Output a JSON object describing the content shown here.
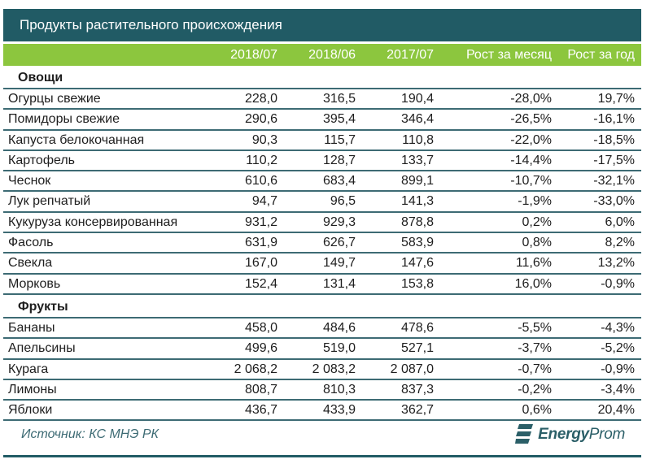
{
  "title": "Продукты растительного происхождения",
  "columns": [
    "",
    "2018/07",
    "2018/06",
    "2017/07",
    "Рост за месяц",
    "Рост за год"
  ],
  "sections": [
    {
      "label": "Овощи",
      "rows": [
        {
          "name": "Огурцы свежие",
          "v1": "228,0",
          "v2": "316,5",
          "v3": "190,4",
          "g_month": "-28,0%",
          "g_year": "19,7%"
        },
        {
          "name": "Помидоры свежие",
          "v1": "290,6",
          "v2": "395,4",
          "v3": "346,4",
          "g_month": "-26,5%",
          "g_year": "-16,1%"
        },
        {
          "name": "Капуста белокочанная",
          "v1": "90,3",
          "v2": "115,7",
          "v3": "110,8",
          "g_month": "-22,0%",
          "g_year": "-18,5%"
        },
        {
          "name": "Картофель",
          "v1": "110,2",
          "v2": "128,7",
          "v3": "133,7",
          "g_month": "-14,4%",
          "g_year": "-17,5%"
        },
        {
          "name": "Чеснок",
          "v1": "610,6",
          "v2": "683,4",
          "v3": "899,1",
          "g_month": "-10,7%",
          "g_year": "-32,1%"
        },
        {
          "name": "Лук репчатый",
          "v1": "94,7",
          "v2": "96,5",
          "v3": "141,3",
          "g_month": "-1,9%",
          "g_year": "-33,0%"
        },
        {
          "name": "Кукуруза консервированная",
          "v1": "931,2",
          "v2": "929,3",
          "v3": "878,8",
          "g_month": "0,2%",
          "g_year": "6,0%"
        },
        {
          "name": "Фасоль",
          "v1": "631,9",
          "v2": "626,7",
          "v3": "583,9",
          "g_month": "0,8%",
          "g_year": "8,2%"
        },
        {
          "name": "Свекла",
          "v1": "167,0",
          "v2": "149,7",
          "v3": "147,6",
          "g_month": "11,6%",
          "g_year": "13,2%"
        },
        {
          "name": "Морковь",
          "v1": "152,4",
          "v2": "131,4",
          "v3": "153,8",
          "g_month": "16,0%",
          "g_year": "-0,9%"
        }
      ]
    },
    {
      "label": "Фрукты",
      "rows": [
        {
          "name": "Бананы",
          "v1": "458,0",
          "v2": "484,6",
          "v3": "478,6",
          "g_month": "-5,5%",
          "g_year": "-4,3%"
        },
        {
          "name": "Апельсины",
          "v1": "499,6",
          "v2": "519,0",
          "v3": "527,1",
          "g_month": "-3,7%",
          "g_year": "-5,2%"
        },
        {
          "name": "Курага",
          "v1": "2 068,2",
          "v2": "2 083,2",
          "v3": "2 087,0",
          "g_month": "-0,7%",
          "g_year": "-0,9%"
        },
        {
          "name": "Лимоны",
          "v1": "808,7",
          "v2": "810,3",
          "v3": "837,3",
          "g_month": "-0,2%",
          "g_year": "-3,4%"
        },
        {
          "name": "Яблоки",
          "v1": "436,7",
          "v2": "433,9",
          "v3": "362,7",
          "g_month": "0,6%",
          "g_year": "20,4%"
        }
      ]
    }
  ],
  "footer": {
    "source": "Источник: КС МНЭ РК",
    "logo_bold": "Energy",
    "logo_thin": "Prom",
    "logo_icon": "energyprom-logo-icon"
  },
  "colors": {
    "title_bg": "#215b65",
    "header_bg": "#8cc63e",
    "row_border": "#3d6b74"
  }
}
